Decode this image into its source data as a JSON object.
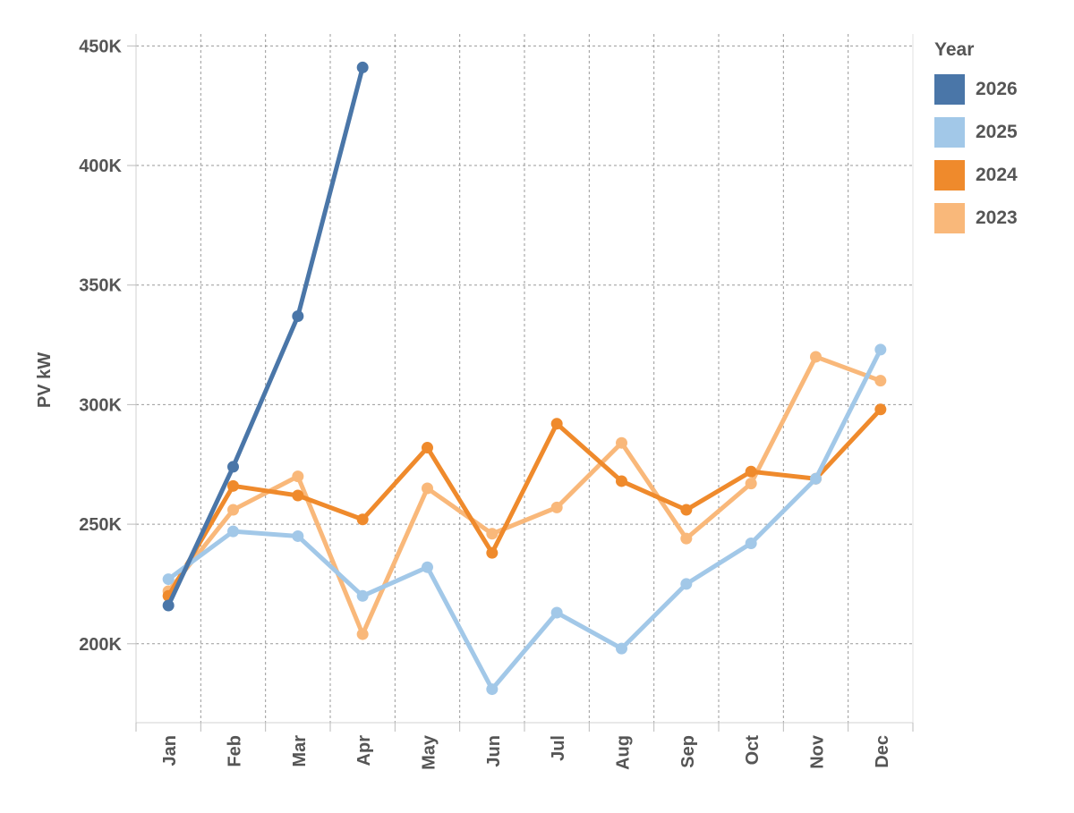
{
  "chart_data": {
    "type": "line",
    "ylabel": "PV kW",
    "ylim": [
      167000,
      455000
    ],
    "yticks": [
      {
        "value": 200000,
        "label": "200K"
      },
      {
        "value": 250000,
        "label": "250K"
      },
      {
        "value": 300000,
        "label": "300K"
      },
      {
        "value": 350000,
        "label": "350K"
      },
      {
        "value": 400000,
        "label": "400K"
      },
      {
        "value": 450000,
        "label": "450K"
      }
    ],
    "categories": [
      "Jan",
      "Feb",
      "Mar",
      "Apr",
      "May",
      "Jun",
      "Jul",
      "Aug",
      "Sep",
      "Oct",
      "Nov",
      "Dec"
    ],
    "grid": true,
    "legend_title": "Year",
    "legend_position": "right",
    "series": [
      {
        "name": "2023",
        "color": "#F9B87A",
        "values": [
          222000,
          256000,
          270000,
          204000,
          265000,
          246000,
          257000,
          284000,
          244000,
          267000,
          320000,
          310000
        ]
      },
      {
        "name": "2024",
        "color": "#EF8A2C",
        "values": [
          220000,
          266000,
          262000,
          252000,
          282000,
          238000,
          292000,
          268000,
          256000,
          272000,
          269000,
          298000
        ]
      },
      {
        "name": "2025",
        "color": "#A2C8E8",
        "values": [
          227000,
          247000,
          245000,
          220000,
          232000,
          181000,
          213000,
          198000,
          225000,
          242000,
          269000,
          323000
        ]
      },
      {
        "name": "2026",
        "color": "#4A76A8",
        "values": [
          216000,
          274000,
          337000,
          441000,
          null,
          null,
          null,
          null,
          null,
          null,
          null,
          null
        ]
      }
    ]
  }
}
